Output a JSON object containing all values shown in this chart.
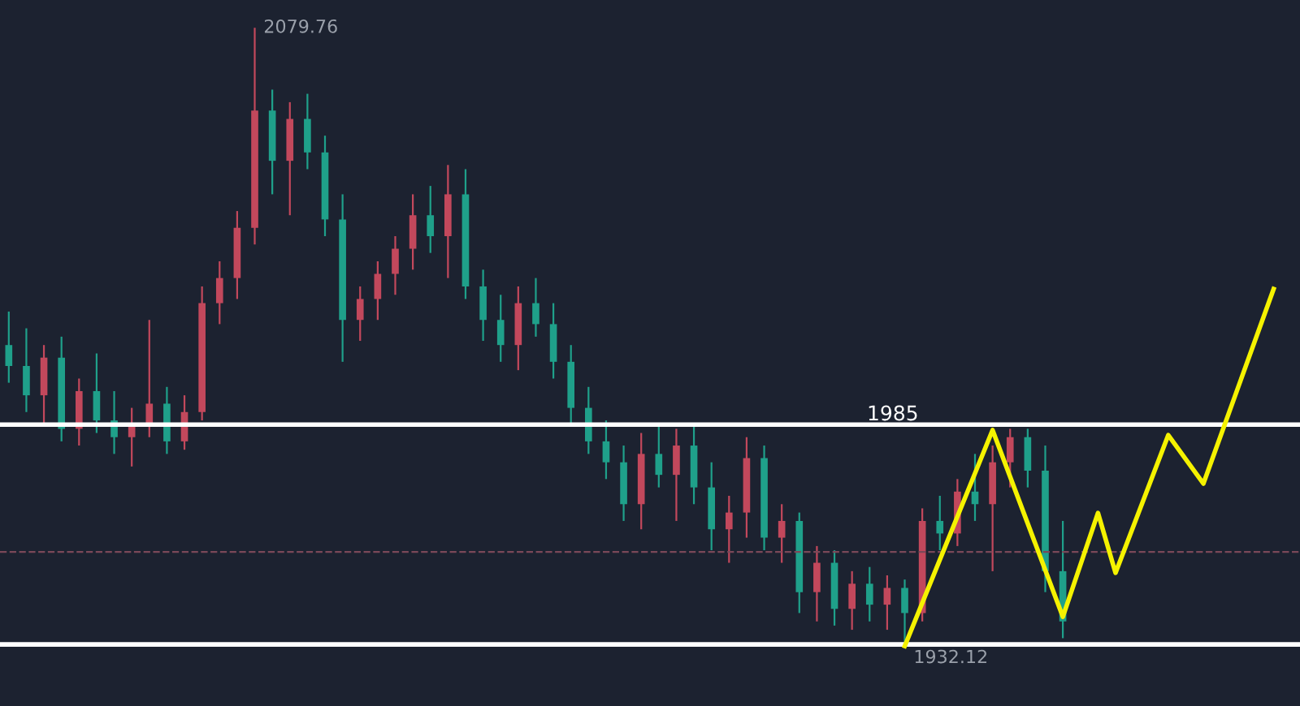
{
  "chart_data": {
    "type": "candlestick",
    "categories": [
      null,
      null,
      null,
      null,
      null,
      null,
      null,
      null,
      null,
      null,
      null,
      null,
      null,
      null,
      null,
      null,
      null,
      null,
      null,
      null,
      null,
      null,
      null,
      null,
      null,
      null,
      null,
      null,
      null,
      null,
      null,
      null,
      null,
      null,
      null,
      null,
      null,
      null,
      null,
      null,
      null,
      null,
      null,
      null,
      null,
      null,
      null,
      null,
      null,
      null,
      null,
      null,
      null,
      null,
      null,
      null,
      null,
      null,
      null,
      null,
      null,
      null,
      null,
      null,
      null,
      null,
      null,
      null,
      null,
      null,
      null,
      null,
      null,
      null
    ],
    "ohlc": [
      [
        2004,
        2012,
        1995,
        1999
      ],
      [
        1999,
        2008,
        1988,
        1992
      ],
      [
        1992,
        2004,
        1985,
        2001
      ],
      [
        2001,
        2006,
        1981,
        1984
      ],
      [
        1984,
        1996,
        1980,
        1993
      ],
      [
        1993,
        2002,
        1983,
        1986
      ],
      [
        1986,
        1993,
        1978,
        1982
      ],
      [
        1982,
        1989,
        1975,
        1985
      ],
      [
        1985,
        2010,
        1982,
        1990
      ],
      [
        1990,
        1994,
        1978,
        1981
      ],
      [
        1981,
        1992,
        1979,
        1988
      ],
      [
        1988,
        2018,
        1986,
        2014
      ],
      [
        2014,
        2024,
        2009,
        2020
      ],
      [
        2020,
        2036,
        2015,
        2032
      ],
      [
        2032,
        2079.76,
        2028,
        2060
      ],
      [
        2060,
        2065,
        2040,
        2048
      ],
      [
        2048,
        2062,
        2035,
        2058
      ],
      [
        2058,
        2064,
        2046,
        2050
      ],
      [
        2050,
        2054,
        2030,
        2034
      ],
      [
        2034,
        2040,
        2000,
        2010
      ],
      [
        2010,
        2018,
        2005,
        2015
      ],
      [
        2015,
        2024,
        2010,
        2021
      ],
      [
        2021,
        2030,
        2016,
        2027
      ],
      [
        2027,
        2040,
        2022,
        2035
      ],
      [
        2035,
        2042,
        2026,
        2030
      ],
      [
        2030,
        2047,
        2020,
        2040
      ],
      [
        2040,
        2046,
        2015,
        2018
      ],
      [
        2018,
        2022,
        2005,
        2010
      ],
      [
        2010,
        2016,
        2000,
        2004
      ],
      [
        2004,
        2018,
        1998,
        2014
      ],
      [
        2014,
        2020,
        2006,
        2009
      ],
      [
        2009,
        2014,
        1996,
        2000
      ],
      [
        2000,
        2004,
        1985,
        1989
      ],
      [
        1989,
        1994,
        1978,
        1981
      ],
      [
        1981,
        1986,
        1972,
        1976
      ],
      [
        1976,
        1980,
        1962,
        1966
      ],
      [
        1966,
        1983,
        1960,
        1978
      ],
      [
        1978,
        1985,
        1970,
        1973
      ],
      [
        1973,
        1984,
        1962,
        1980
      ],
      [
        1980,
        1985,
        1966,
        1970
      ],
      [
        1970,
        1976,
        1955,
        1960
      ],
      [
        1960,
        1968,
        1952,
        1964
      ],
      [
        1964,
        1982,
        1958,
        1977
      ],
      [
        1977,
        1980,
        1955,
        1958
      ],
      [
        1958,
        1966,
        1952,
        1962
      ],
      [
        1962,
        1964,
        1940,
        1945
      ],
      [
        1945,
        1956,
        1938,
        1952
      ],
      [
        1952,
        1955,
        1937,
        1941
      ],
      [
        1941,
        1950,
        1936,
        1947
      ],
      [
        1947,
        1951,
        1938,
        1942
      ],
      [
        1942,
        1949,
        1936,
        1946
      ],
      [
        1946,
        1948,
        1932.12,
        1940
      ],
      [
        1940,
        1965,
        1938,
        1962
      ],
      [
        1962,
        1968,
        1955,
        1959
      ],
      [
        1959,
        1972,
        1956,
        1969
      ],
      [
        1969,
        1978,
        1962,
        1966
      ],
      [
        1966,
        1980,
        1950,
        1976
      ],
      [
        1976,
        1984,
        1970,
        1982
      ],
      [
        1982,
        1984,
        1970,
        1974
      ],
      [
        1974,
        1980,
        1945,
        1950
      ],
      [
        1950,
        1962,
        1934,
        1938
      ],
      null,
      null,
      null,
      null,
      null,
      null,
      null,
      null,
      null,
      null,
      null,
      null,
      null
    ],
    "colors": [
      "#1fa08a",
      "#1fa08a",
      "#c2485c",
      "#1fa08a",
      "#c2485c",
      "#1fa08a",
      "#1fa08a",
      "#c2485c",
      "#c2485c",
      "#1fa08a",
      "#c2485c",
      "#c2485c",
      "#c2485c",
      "#c2485c",
      "#c2485c",
      "#1fa08a",
      "#c2485c",
      "#1fa08a",
      "#1fa08a",
      "#1fa08a",
      "#c2485c",
      "#c2485c",
      "#c2485c",
      "#c2485c",
      "#1fa08a",
      "#c2485c",
      "#1fa08a",
      "#1fa08a",
      "#1fa08a",
      "#c2485c",
      "#1fa08a",
      "#1fa08a",
      "#1fa08a",
      "#1fa08a",
      "#1fa08a",
      "#1fa08a",
      "#c2485c",
      "#1fa08a",
      "#c2485c",
      "#1fa08a",
      "#1fa08a",
      "#c2485c",
      "#c2485c",
      "#1fa08a",
      "#c2485c",
      "#1fa08a",
      "#c2485c",
      "#1fa08a",
      "#c2485c",
      "#1fa08a",
      "#c2485c",
      "#1fa08a",
      "#c2485c",
      "#1fa08a",
      "#c2485c",
      "#1fa08a",
      "#c2485c",
      "#c2485c",
      "#1fa08a",
      "#1fa08a",
      "#1fa08a",
      null,
      null,
      null,
      null,
      null,
      null,
      null,
      null,
      null,
      null,
      null,
      null,
      null
    ],
    "ylim": [
      1917.8,
      2086.4
    ],
    "series": [
      {
        "type": "line",
        "color": "#f5f200",
        "values": [
          null,
          null,
          null,
          null,
          null,
          null,
          null,
          null,
          null,
          null,
          null,
          null,
          null,
          null,
          null,
          null,
          null,
          null,
          null,
          null,
          null,
          null,
          null,
          null,
          null,
          null,
          null,
          null,
          null,
          null,
          null,
          null,
          null,
          null,
          null,
          null,
          null,
          null,
          null,
          null,
          null,
          null,
          null,
          null,
          null,
          null,
          null,
          null,
          null,
          null,
          null,
          1932.1,
          null,
          null,
          null,
          null,
          1983.7,
          null,
          null,
          null,
          1939.1,
          null,
          1963.9,
          1949.6,
          null,
          null,
          1982.5,
          null,
          1970.9,
          null,
          null,
          null,
          2017.4,
          null
        ]
      }
    ],
    "ref_lines": [
      {
        "axis": "y",
        "value": 1985,
        "label": "1985",
        "color": "#ffffff"
      },
      {
        "axis": "y",
        "value": 1932.5,
        "color": "#ffffff"
      },
      {
        "axis": "y",
        "value": 1954.6,
        "color": "#7a4858",
        "line_style": "dashed"
      }
    ],
    "annotations": [
      "2079.76",
      "1932.12"
    ]
  }
}
